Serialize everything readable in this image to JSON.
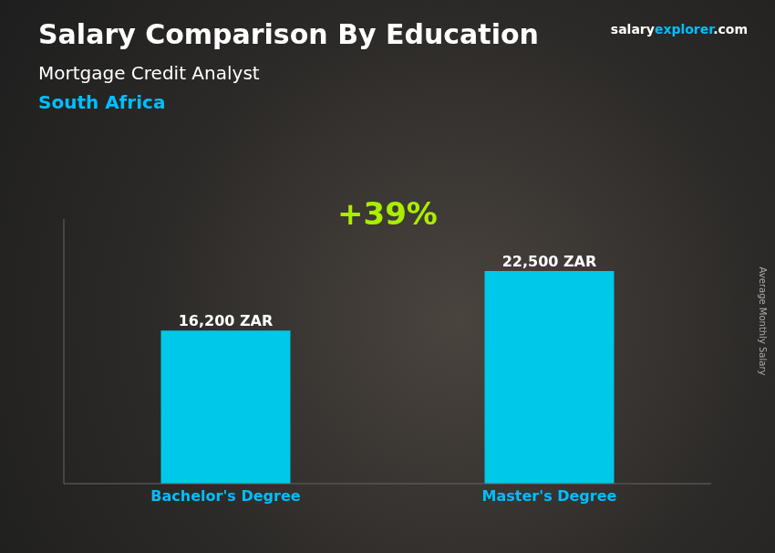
{
  "chart_data": {
    "type": "bar",
    "title": "Salary Comparison By Education",
    "subtitle": "Mortgage Credit Analyst",
    "categories": [
      "Bachelor's Degree",
      "Master's Degree"
    ],
    "values": [
      16200,
      22500
    ],
    "value_labels": [
      "16,200 ZAR",
      "22,500 ZAR"
    ],
    "data_labels": true,
    "color": "#00C8E8",
    "ylim": [
      0,
      28000
    ],
    "ylabel": "Average Monthly Salary",
    "tick_labels": "x",
    "grid": false,
    "annotations": [
      {
        "text": "South Africa",
        "color": "#00BFFF"
      },
      {
        "text": "+39%",
        "color": "#AAEE00"
      },
      {
        "text": "salary",
        "color": "#ffffff"
      },
      {
        "text": "explorer",
        "color": "#00BFFF"
      },
      {
        "text": ".com",
        "color": "#ffffff"
      }
    ]
  }
}
